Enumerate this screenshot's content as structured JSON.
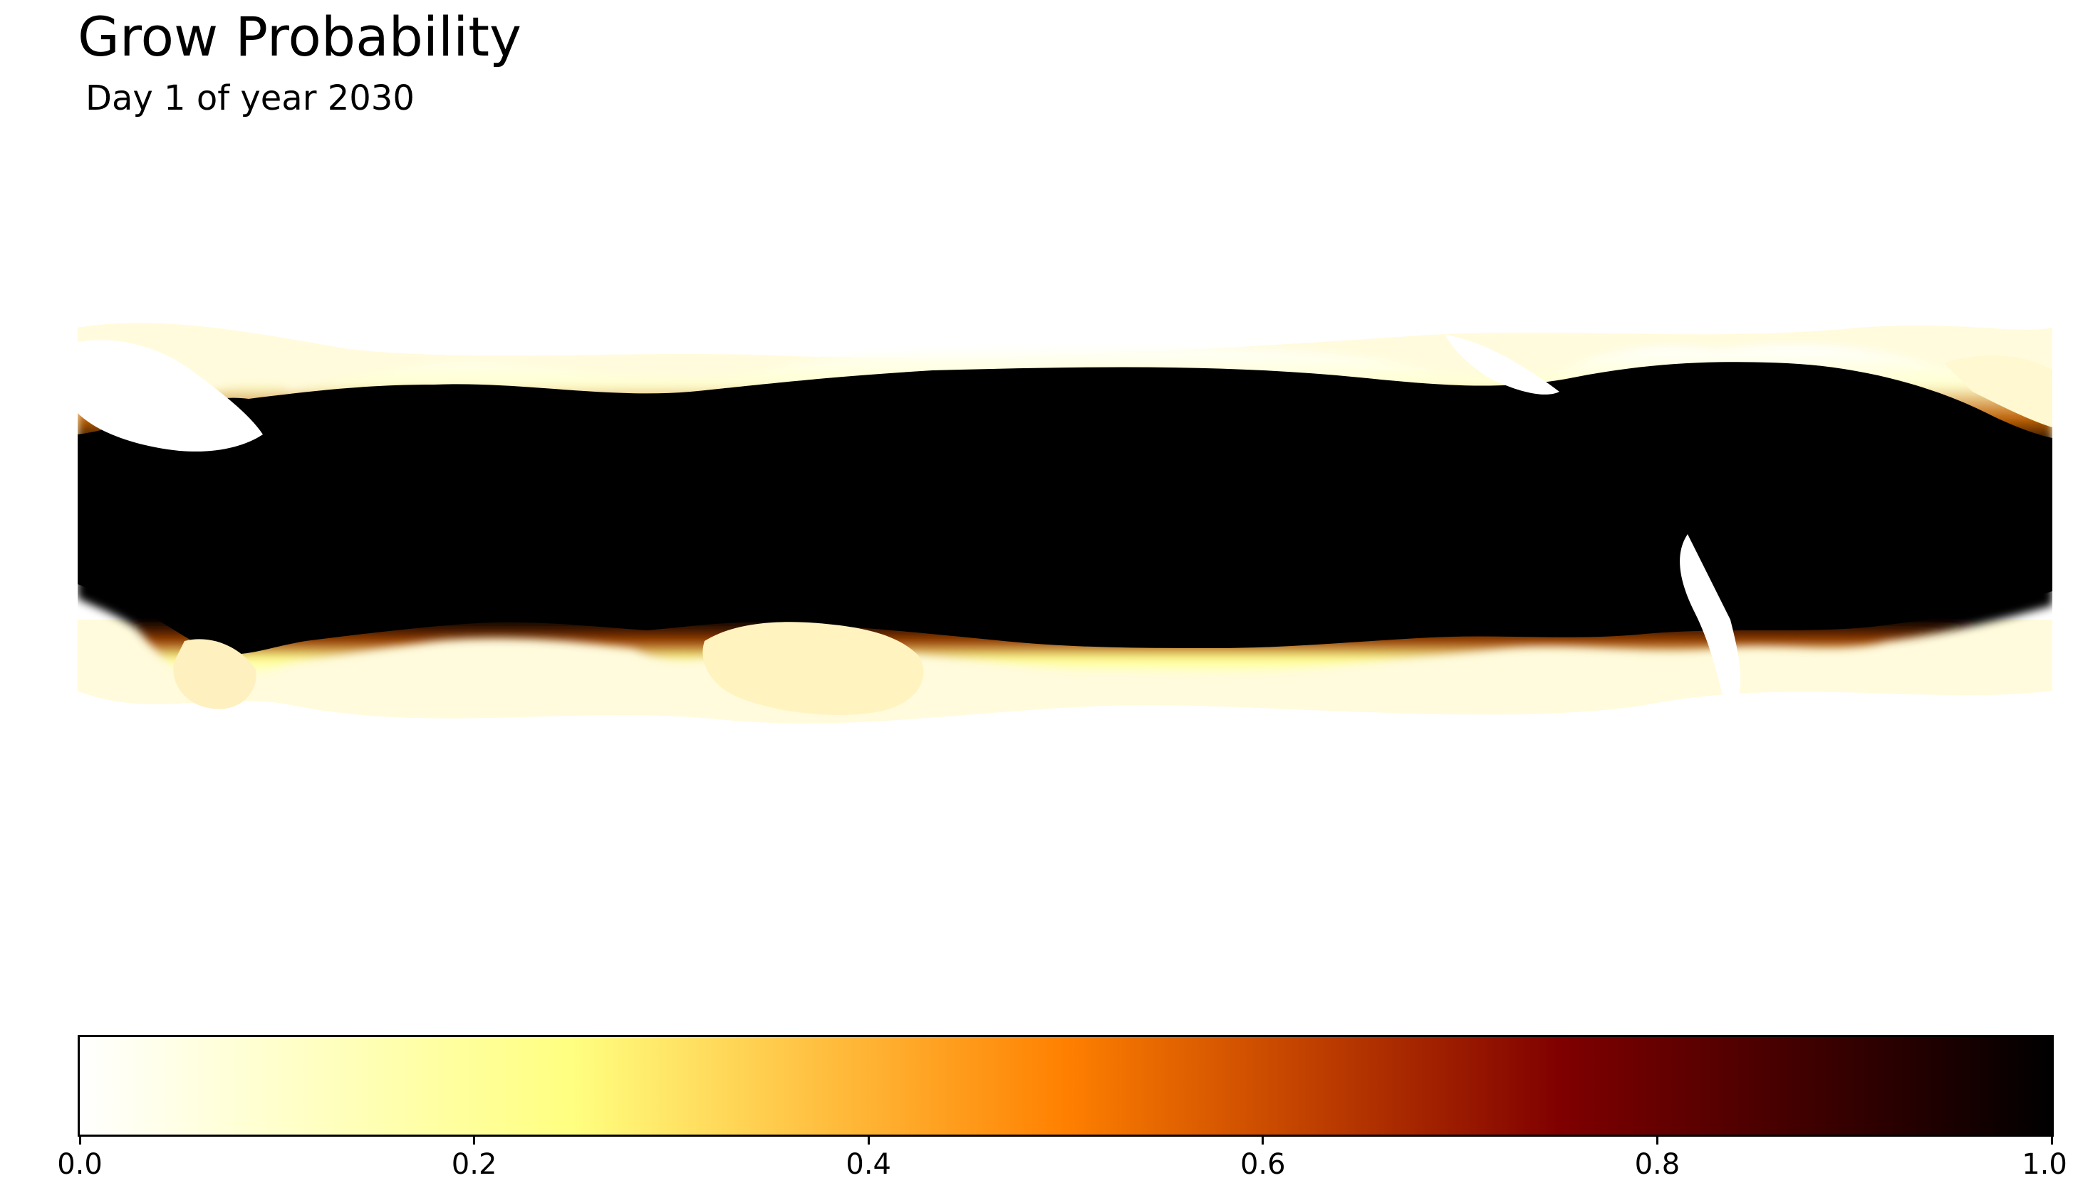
{
  "title": "Grow Probability",
  "subtitle": "Day 1 of year 2030",
  "colorbar": {
    "colormap": "afmhot_r",
    "range": [
      0.0,
      1.0
    ],
    "orientation": "horizontal",
    "ticks": [
      "0.0",
      "0.2",
      "0.4",
      "0.6",
      "0.8",
      "1.0"
    ],
    "stops": [
      {
        "value": 0.0,
        "color": "#ffffff"
      },
      {
        "value": 0.25,
        "color": "#ffff80"
      },
      {
        "value": 0.5,
        "color": "#ff8000"
      },
      {
        "value": 0.75,
        "color": "#800000"
      },
      {
        "value": 1.0,
        "color": "#000000"
      }
    ]
  },
  "map": {
    "projection": "equirectangular, longitude 180°W–180°E",
    "background_color": "#ffffff",
    "high_probability_color": "#000000"
  }
}
